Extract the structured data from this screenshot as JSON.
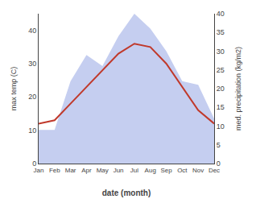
{
  "chart_data": {
    "type": "line",
    "xlabel": "date (month)",
    "ylabel": "max temp (C)",
    "y2label": "med. precipitation (kg/m2)",
    "categories": [
      "Jan",
      "Feb",
      "Mar",
      "Apr",
      "May",
      "Jun",
      "Jul",
      "Aug",
      "Sep",
      "Oct",
      "Nov",
      "Dec"
    ],
    "series": [
      {
        "type": "area",
        "axis": "y2",
        "color": "#c5cef0",
        "values": [
          9,
          9,
          22,
          29,
          26,
          34,
          40,
          36,
          30,
          22,
          21,
          12
        ]
      },
      {
        "type": "line",
        "color": "#c0392b",
        "values": [
          12,
          13,
          18,
          23,
          28,
          33,
          36,
          35,
          30,
          23,
          16,
          12
        ]
      }
    ],
    "ylim": [
      0,
      45
    ],
    "yticks": [
      0,
      10,
      20,
      30,
      40
    ],
    "y2lim": [
      0,
      40
    ],
    "y2ticks": [
      0,
      5,
      10,
      15,
      20,
      25,
      30,
      35,
      40
    ],
    "grid": false
  }
}
